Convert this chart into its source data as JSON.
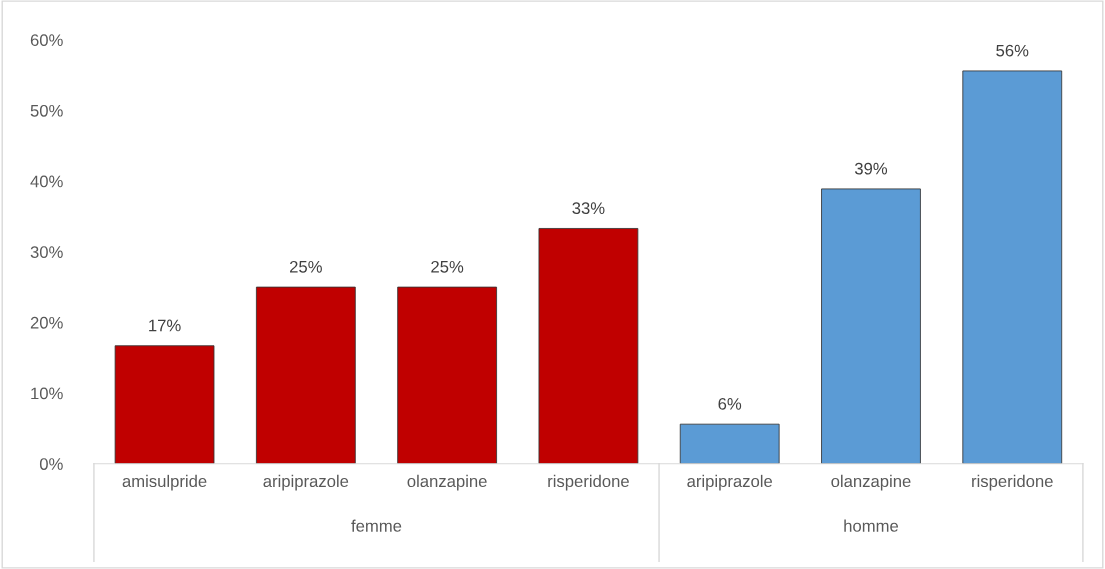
{
  "chart_data": {
    "type": "bar",
    "categories": [
      "amisulpride",
      "aripiprazole",
      "olanzapine",
      "risperidone",
      "aripiprazole",
      "olanzapine",
      "risperidone"
    ],
    "series": [
      {
        "color": "#c00000",
        "values": [
          16.7,
          25,
          25,
          33.3,
          null,
          null,
          null
        ],
        "value_labels": [
          "17%",
          "25%",
          "25%",
          "33%",
          null,
          null,
          null
        ]
      },
      {
        "color": "#5b9bd5",
        "values": [
          null,
          null,
          null,
          null,
          5.6,
          38.9,
          55.6
        ],
        "value_labels": [
          null,
          null,
          null,
          null,
          "6%",
          "39%",
          "56%"
        ]
      }
    ],
    "ylim": [
      0,
      60
    ],
    "yticks": [
      {
        "value": 0,
        "label": "0%"
      },
      {
        "value": 10,
        "label": "10%"
      },
      {
        "value": 20,
        "label": "20%"
      },
      {
        "value": 30,
        "label": "30%"
      },
      {
        "value": 40,
        "label": "40%"
      },
      {
        "value": 50,
        "label": "50%"
      },
      {
        "value": 60,
        "label": "60%"
      }
    ],
    "annotations": [
      "femme",
      "homme"
    ],
    "grid": false,
    "legend": false
  }
}
